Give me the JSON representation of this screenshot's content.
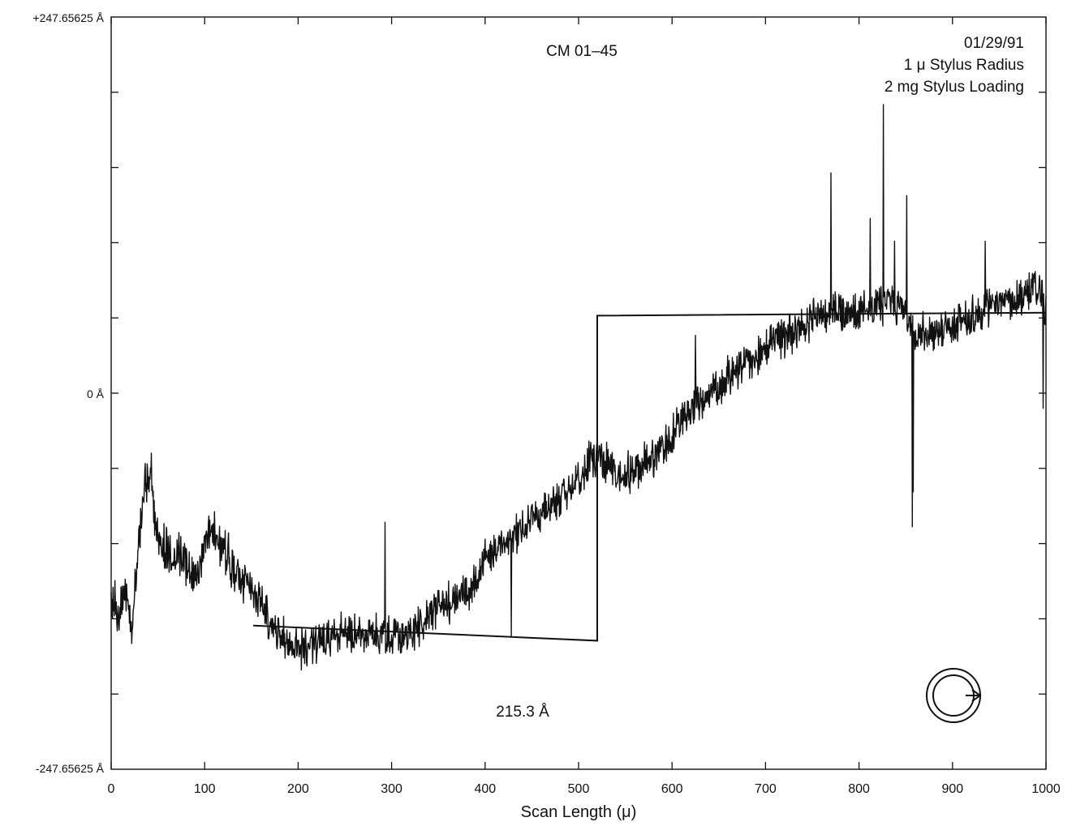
{
  "chart_data": {
    "type": "line",
    "title": "CM 01–45",
    "info_lines": [
      "01/29/91",
      "1 μ Stylus Radius",
      "2 mg Stylus Loading"
    ],
    "xlabel": "Scan Length (μ)",
    "ylabel": "",
    "xlim": [
      0,
      1000
    ],
    "ylim": [
      -247.65625,
      247.65625
    ],
    "x_ticks": [
      0,
      100,
      200,
      300,
      400,
      500,
      600,
      700,
      800,
      900,
      1000
    ],
    "x_tick_labels": [
      "0",
      "100",
      "200",
      "300",
      "400",
      "500",
      "600",
      "700",
      "800",
      "900",
      "1000"
    ],
    "y_tick_labels": {
      "top": "+247.65625 Å",
      "middle": "0 Å",
      "bottom": "-247.65625 Å"
    },
    "y_minor_ticks": [
      -198.125,
      -148.59375,
      -99.0625,
      -49.53125,
      49.53125,
      99.0625,
      148.59375,
      198.125
    ],
    "annotation": "215.3 Å",
    "grid": false,
    "series": [
      {
        "kind": "profile",
        "anchors": [
          [
            0,
            -130
          ],
          [
            8,
            -150
          ],
          [
            15,
            -125
          ],
          [
            22,
            -160
          ],
          [
            28,
            -110
          ],
          [
            33,
            -75
          ],
          [
            38,
            -60
          ],
          [
            42,
            -50
          ],
          [
            48,
            -95
          ],
          [
            55,
            -100
          ],
          [
            65,
            -110
          ],
          [
            75,
            -105
          ],
          [
            85,
            -120
          ],
          [
            95,
            -115
          ],
          [
            105,
            -90
          ],
          [
            115,
            -100
          ],
          [
            125,
            -110
          ],
          [
            135,
            -120
          ],
          [
            145,
            -125
          ],
          [
            155,
            -135
          ],
          [
            165,
            -145
          ],
          [
            180,
            -160
          ],
          [
            195,
            -165
          ],
          [
            210,
            -170
          ],
          [
            230,
            -160
          ],
          [
            250,
            -158
          ],
          [
            270,
            -157
          ],
          [
            290,
            -158
          ],
          [
            310,
            -160
          ],
          [
            325,
            -156
          ],
          [
            340,
            -145
          ],
          [
            355,
            -140
          ],
          [
            370,
            -135
          ],
          [
            385,
            -130
          ],
          [
            400,
            -110
          ],
          [
            420,
            -100
          ],
          [
            440,
            -90
          ],
          [
            460,
            -80
          ],
          [
            480,
            -70
          ],
          [
            500,
            -55
          ],
          [
            520,
            -40
          ],
          [
            535,
            -50
          ],
          [
            550,
            -55
          ],
          [
            570,
            -45
          ],
          [
            590,
            -35
          ],
          [
            610,
            -20
          ],
          [
            630,
            -5
          ],
          [
            650,
            5
          ],
          [
            670,
            15
          ],
          [
            690,
            25
          ],
          [
            710,
            35
          ],
          [
            730,
            40
          ],
          [
            750,
            48
          ],
          [
            770,
            55
          ],
          [
            790,
            52
          ],
          [
            810,
            55
          ],
          [
            830,
            60
          ],
          [
            850,
            55
          ],
          [
            860,
            40
          ],
          [
            880,
            40
          ],
          [
            900,
            45
          ],
          [
            920,
            50
          ],
          [
            940,
            55
          ],
          [
            960,
            60
          ],
          [
            980,
            65
          ],
          [
            990,
            70
          ],
          [
            1000,
            55
          ]
        ],
        "spikes": [
          [
            40,
            -55
          ],
          [
            293,
            -85
          ],
          [
            428,
            -160
          ],
          [
            625,
            38
          ],
          [
            770,
            145
          ],
          [
            812,
            115
          ],
          [
            826,
            190
          ],
          [
            838,
            100
          ],
          [
            851,
            130
          ],
          [
            857,
            -88
          ],
          [
            858,
            -65
          ],
          [
            935,
            100
          ],
          [
            997,
            -10
          ]
        ]
      },
      {
        "kind": "fit-step",
        "points": [
          [
            152,
            -153
          ],
          [
            520,
            -163
          ],
          [
            520,
            51
          ],
          [
            1000,
            53
          ]
        ]
      }
    ],
    "legend_icon": "circular-arrow-icon"
  }
}
